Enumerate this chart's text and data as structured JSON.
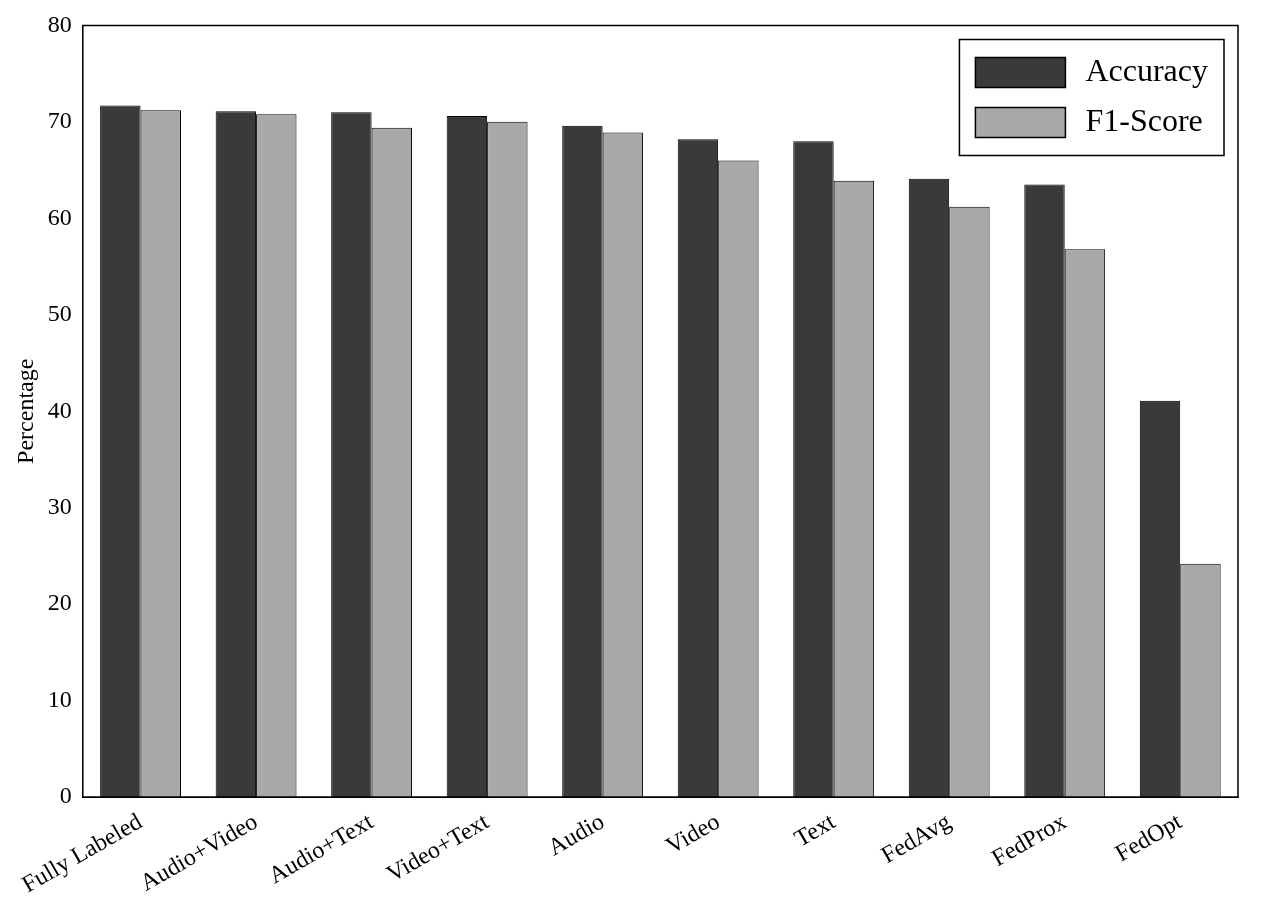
{
  "chart_data": {
    "type": "bar",
    "ylabel": "Percentage",
    "categories": [
      "Fully Labeled",
      "Audio+Video",
      "Audio+Text",
      "Video+Text",
      "Audio",
      "Video",
      "Text",
      "FedAvg",
      "FedProx",
      "FedOpt"
    ],
    "series": [
      {
        "name": "Accuracy",
        "color": "#3a3a3a",
        "values": [
          71.7,
          71.1,
          71.0,
          70.6,
          69.6,
          68.2,
          68.0,
          64.1,
          63.5,
          41.1
        ]
      },
      {
        "name": "F1-Score",
        "color": "#a9a9a9",
        "values": [
          71.2,
          70.8,
          69.4,
          70.0,
          68.9,
          66.0,
          63.9,
          61.2,
          56.8,
          24.2
        ]
      }
    ],
    "ylim": [
      0,
      80
    ],
    "yticks": [
      0,
      10,
      20,
      30,
      40,
      50,
      60,
      70,
      80
    ],
    "grid": false,
    "legend": "top right"
  }
}
